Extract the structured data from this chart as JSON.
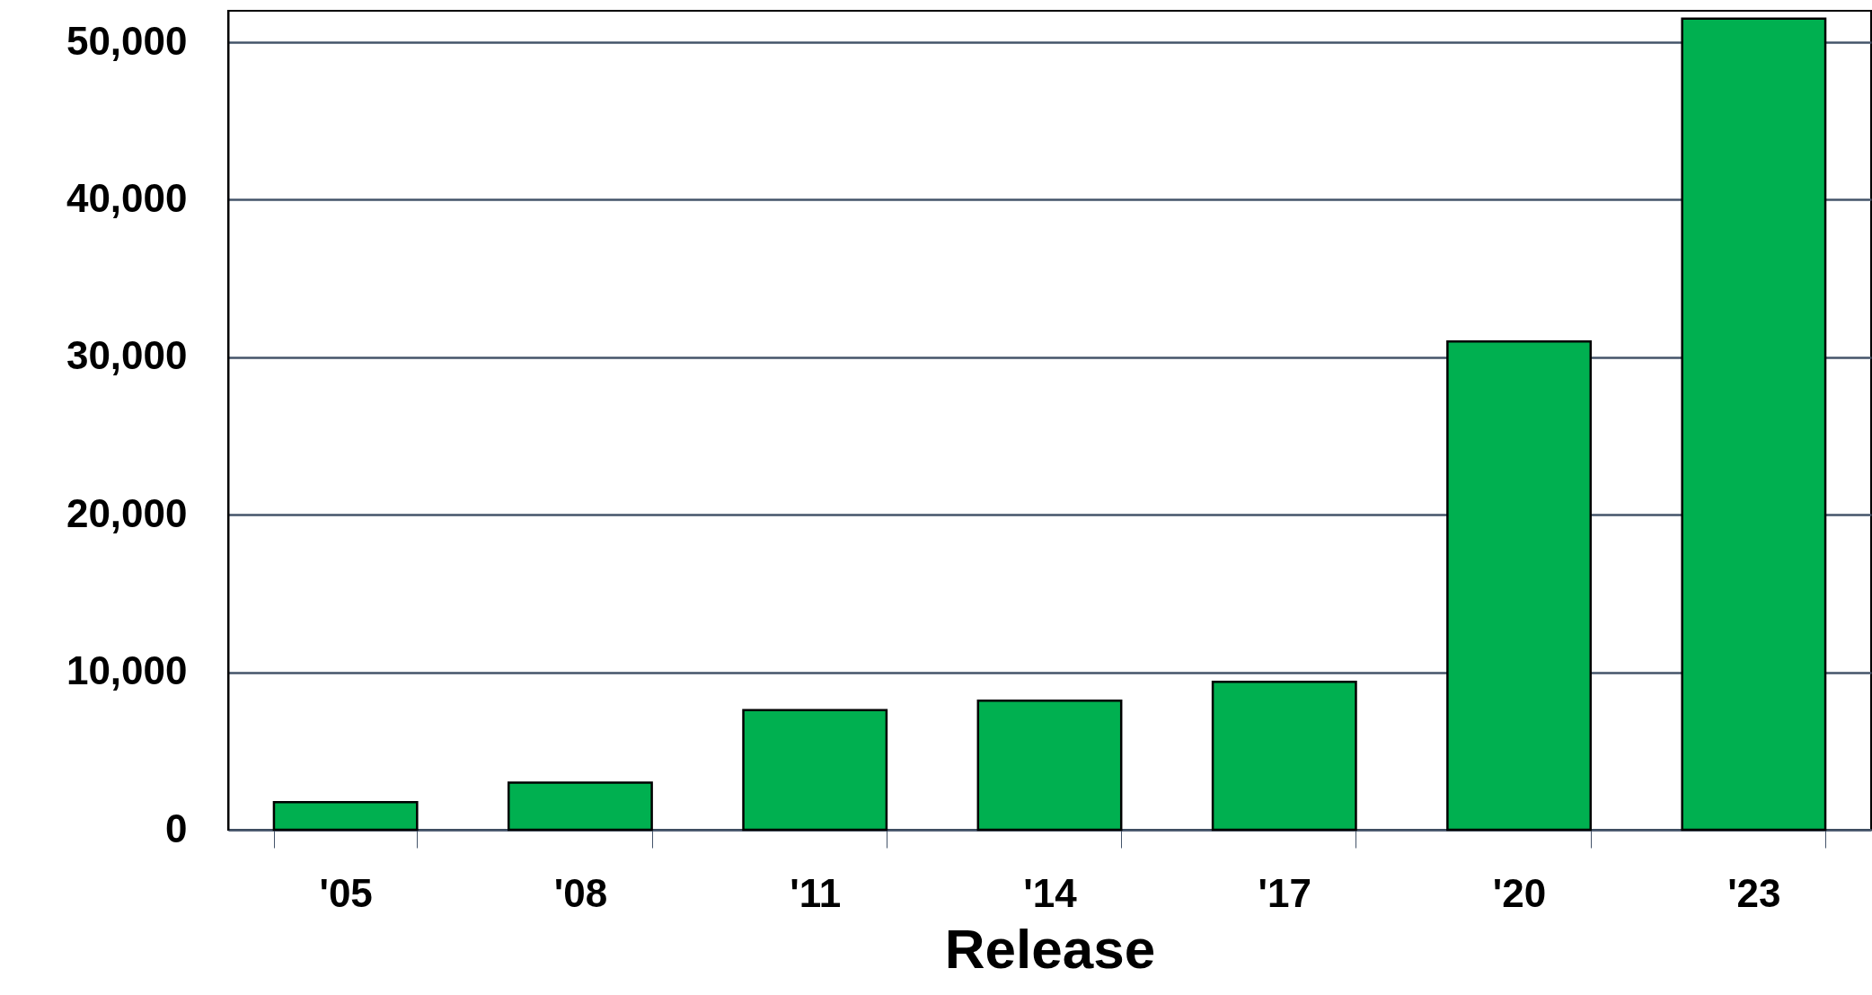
{
  "chart_data": {
    "type": "bar",
    "xlabel": "Release",
    "categories": [
      "'05",
      "'08",
      "'11",
      "'14",
      "'17",
      "'20",
      "'23"
    ],
    "values": [
      1750,
      3000,
      7600,
      8200,
      9400,
      31000,
      51500
    ],
    "color": "#00b050",
    "ylim": [
      0,
      52000
    ],
    "yticks": [
      {
        "value": 0,
        "label": "0"
      },
      {
        "value": 10000,
        "label": "10,000"
      },
      {
        "value": 20000,
        "label": "20,000"
      },
      {
        "value": 30000,
        "label": "30,000"
      },
      {
        "value": 40000,
        "label": "40,000"
      },
      {
        "value": 50000,
        "label": "50,000"
      }
    ],
    "grid": "y"
  }
}
